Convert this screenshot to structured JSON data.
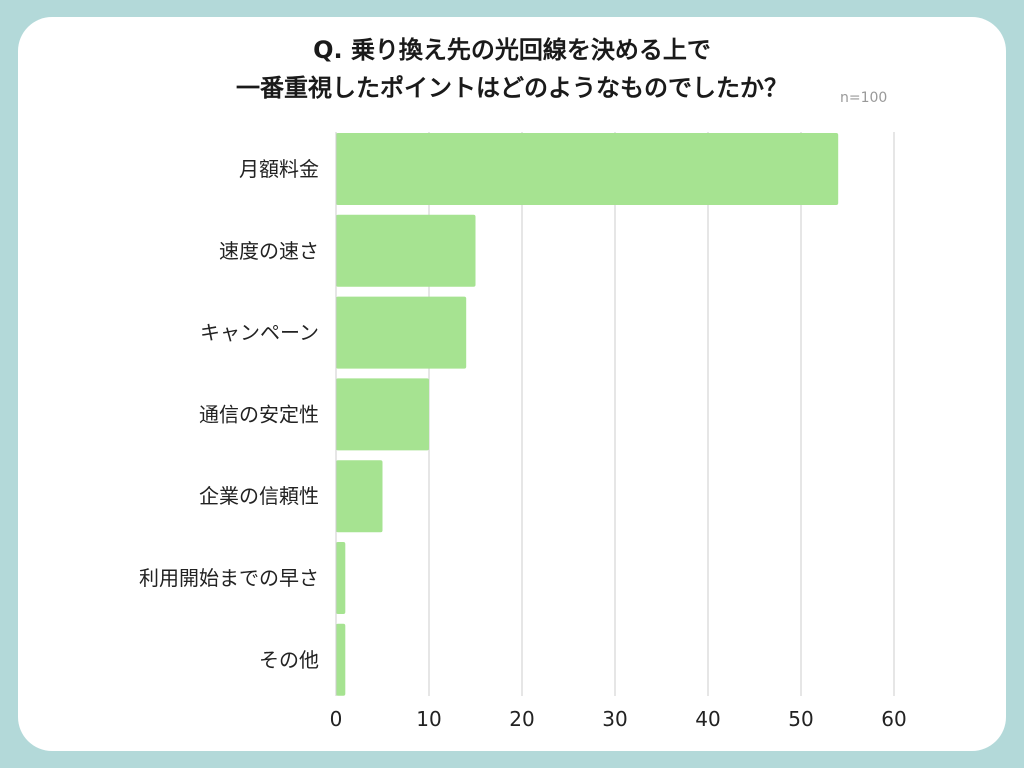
{
  "chart_data": {
    "type": "bar",
    "orientation": "horizontal",
    "title_lines": [
      "Q. 乗り換え先の光回線を決める上で",
      "一番重視したポイントはどのようなものでしたか？"
    ],
    "note": "n=100",
    "categories": [
      "月額料金",
      "速度の速さ",
      "キャンペーン",
      "通信の安定性",
      "企業の信頼性",
      "利用開始までの早さ",
      "その他"
    ],
    "values": [
      54,
      15,
      14,
      10,
      5,
      1,
      1
    ],
    "xlim": [
      0,
      60
    ],
    "xticks": [
      "0",
      "10",
      "20",
      "30",
      "40",
      "50",
      "60"
    ],
    "grid": "vertical",
    "bar_color": "#a6e391"
  }
}
